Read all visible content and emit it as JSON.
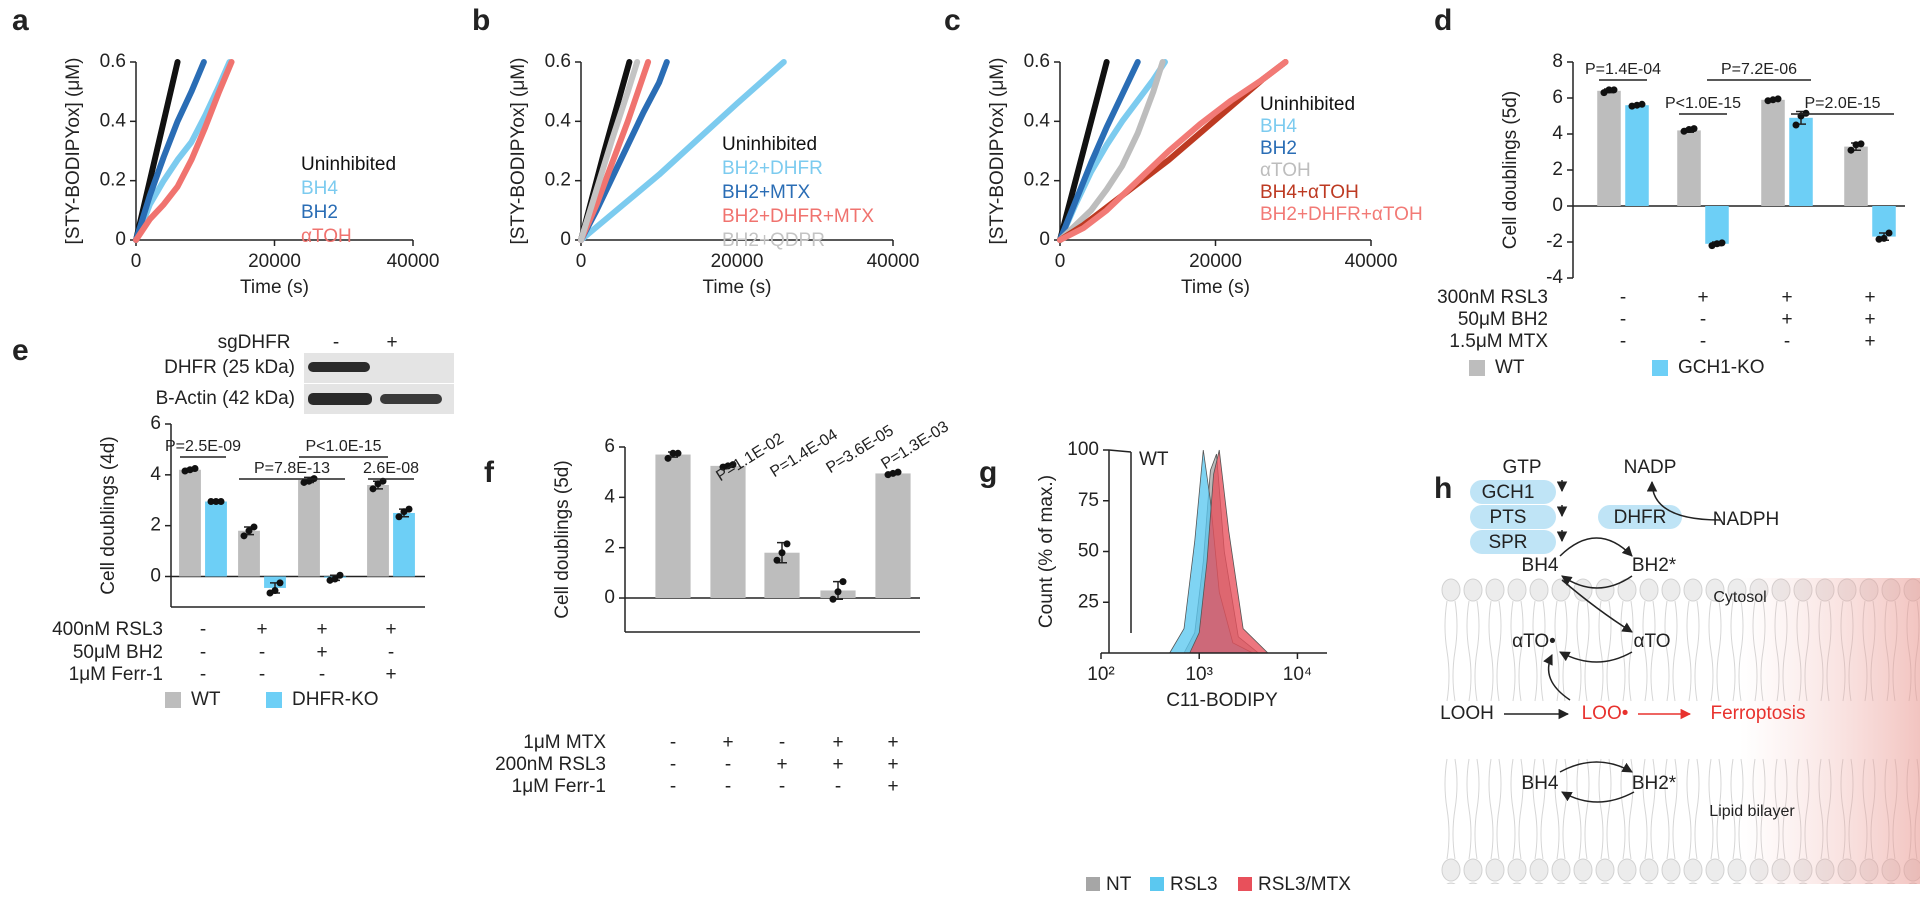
{
  "chart_data": [
    {
      "panel": "a",
      "type": "line",
      "ylabel": "[STY-BODIPYox] (μM)",
      "xlabel": "Time (s)",
      "xlim": [
        0,
        40000
      ],
      "ylim": [
        0,
        0.6
      ],
      "xticks": [
        0,
        20000,
        40000
      ],
      "yticks": [
        0,
        0.2,
        0.4,
        0.6
      ],
      "series": [
        {
          "name": "Uninhibited",
          "color": "#111111",
          "x": [
            0,
            1500,
            3000,
            4500,
            6000
          ],
          "values": [
            0,
            0.15,
            0.3,
            0.45,
            0.6
          ]
        },
        {
          "name": "BH4",
          "color": "#7ccbef",
          "x": [
            0,
            2000,
            4000,
            6000,
            8000,
            10000,
            12000,
            13500
          ],
          "values": [
            0,
            0.12,
            0.2,
            0.27,
            0.33,
            0.42,
            0.52,
            0.6
          ]
        },
        {
          "name": "BH2",
          "color": "#2a6db5",
          "x": [
            0,
            2000,
            4000,
            6000,
            8000,
            9800
          ],
          "values": [
            0,
            0.15,
            0.28,
            0.4,
            0.5,
            0.6
          ]
        },
        {
          "name": "αTOH",
          "color": "#f0736f",
          "x": [
            0,
            2000,
            4000,
            6000,
            8000,
            10000,
            12000,
            13800
          ],
          "values": [
            0,
            0.07,
            0.12,
            0.18,
            0.27,
            0.38,
            0.5,
            0.6
          ]
        }
      ]
    },
    {
      "panel": "b",
      "type": "line",
      "ylabel": "[STY-BODIPYox] (μM)",
      "xlabel": "Time (s)",
      "xlim": [
        0,
        40000
      ],
      "ylim": [
        0,
        0.6
      ],
      "xticks": [
        0,
        20000,
        40000
      ],
      "yticks": [
        0,
        0.2,
        0.4,
        0.6
      ],
      "series": [
        {
          "name": "Uninhibited",
          "color": "#111111",
          "x": [
            0,
            1500,
            3000,
            4600,
            6200
          ],
          "values": [
            0,
            0.15,
            0.3,
            0.45,
            0.6
          ]
        },
        {
          "name": "BH2+DHFR",
          "color": "#7ccbef",
          "x": [
            0,
            5000,
            10000,
            15000,
            20000,
            26000
          ],
          "values": [
            0,
            0.11,
            0.22,
            0.34,
            0.46,
            0.6
          ]
        },
        {
          "name": "BH2+MTX",
          "color": "#2a6db5",
          "x": [
            0,
            2000,
            4000,
            6000,
            8000,
            10000,
            11000
          ],
          "values": [
            0,
            0.1,
            0.21,
            0.32,
            0.43,
            0.53,
            0.6
          ]
        },
        {
          "name": "BH2+DHFR+MTX",
          "color": "#f0736f",
          "x": [
            0,
            2000,
            4000,
            6000,
            8600
          ],
          "values": [
            0,
            0.12,
            0.26,
            0.4,
            0.6
          ]
        },
        {
          "name": "BH2+QDPR",
          "color": "#c4c4c4",
          "x": [
            0,
            2000,
            4000,
            6000,
            7200
          ],
          "values": [
            0,
            0.17,
            0.34,
            0.5,
            0.6
          ]
        }
      ]
    },
    {
      "panel": "c",
      "type": "line",
      "ylabel": "[STY-BODIPYox] (μM)",
      "xlabel": "Time (s)",
      "xlim": [
        0,
        40000
      ],
      "ylim": [
        0,
        0.6
      ],
      "xticks": [
        0,
        20000,
        40000
      ],
      "yticks": [
        0,
        0.2,
        0.4,
        0.6
      ],
      "series": [
        {
          "name": "Uninhibited",
          "color": "#111111",
          "x": [
            0,
            1500,
            3000,
            4500,
            6000
          ],
          "values": [
            0,
            0.15,
            0.3,
            0.45,
            0.6
          ]
        },
        {
          "name": "BH4",
          "color": "#7ccbef",
          "x": [
            0,
            2000,
            4000,
            6000,
            8000,
            10000,
            12000,
            13500
          ],
          "values": [
            0,
            0.12,
            0.23,
            0.32,
            0.4,
            0.47,
            0.54,
            0.6
          ]
        },
        {
          "name": "BH2",
          "color": "#2a6db5",
          "x": [
            0,
            2000,
            4000,
            6000,
            8000,
            10000
          ],
          "values": [
            0,
            0.13,
            0.26,
            0.38,
            0.49,
            0.6
          ]
        },
        {
          "name": "αTOH",
          "color": "#bdbdbd",
          "x": [
            0,
            2000,
            4000,
            6000,
            8000,
            10000,
            12000,
            13200
          ],
          "values": [
            0,
            0.05,
            0.1,
            0.17,
            0.25,
            0.36,
            0.5,
            0.6
          ]
        },
        {
          "name": "BH4+αTOH",
          "color": "#bd3a22",
          "x": [
            0,
            3000,
            6000,
            10000,
            14000,
            18000,
            22000,
            26000,
            29000
          ],
          "values": [
            0,
            0.05,
            0.11,
            0.19,
            0.27,
            0.36,
            0.45,
            0.54,
            0.6
          ]
        },
        {
          "name": "BH2+DHFR+αTOH",
          "color": "#f27a76",
          "x": [
            0,
            3000,
            6000,
            10000,
            14000,
            18000,
            22000,
            26000,
            29000
          ],
          "values": [
            0,
            0.04,
            0.1,
            0.2,
            0.3,
            0.39,
            0.47,
            0.54,
            0.6
          ]
        }
      ]
    },
    {
      "panel": "d",
      "type": "bar",
      "ylabel": "Cell doublings (5d)",
      "ylim": [
        -4,
        8
      ],
      "yticks": [
        -4,
        -2,
        0,
        2,
        4,
        6,
        8
      ],
      "series": [
        {
          "name": "WT",
          "color": "#bdbdbd",
          "values": [
            6.4,
            4.2,
            5.9,
            3.3
          ],
          "errors": [
            0.1,
            0.1,
            0.05,
            0.2
          ],
          "points": [
            [
              6.3,
              6.45,
              6.45
            ],
            [
              4.15,
              4.25,
              4.3
            ],
            [
              5.85,
              5.9,
              5.95
            ],
            [
              3.1,
              3.4,
              3.45
            ]
          ]
        },
        {
          "name": "GCH1-KO",
          "color": "#6dcff6",
          "values": [
            5.6,
            -2.1,
            4.9,
            -1.7
          ],
          "errors": [
            0.05,
            0.1,
            0.35,
            0.2
          ],
          "points": [
            [
              5.55,
              5.6,
              5.65
            ],
            [
              -2.2,
              -2.1,
              -2.05
            ],
            [
              4.5,
              5.0,
              5.15
            ],
            [
              -1.85,
              -1.8,
              -1.5
            ]
          ]
        }
      ],
      "annotations": [
        "P=1.4E-04",
        "P<1.0E-15",
        "P=7.2E-06",
        "P=2.0E-15"
      ],
      "conditions": [
        {
          "name": "300nM RSL3",
          "values": [
            "-",
            "+",
            "+",
            "+"
          ]
        },
        {
          "name": "50μM BH2",
          "values": [
            "-",
            "-",
            "+",
            "+"
          ]
        },
        {
          "name": "1.5μM MTX",
          "values": [
            "-",
            "-",
            "-",
            "+"
          ]
        }
      ]
    },
    {
      "panel": "e",
      "type": "bar",
      "ylabel": "Cell doublings (4d)",
      "ylim": [
        -1.2,
        6
      ],
      "yticks": [
        0,
        2,
        4,
        6
      ],
      "blot": {
        "title": "sgDHFR",
        "lanes": [
          "-",
          "+"
        ],
        "rows": [
          "DHFR (25 kDa)",
          "B-Actin (42 kDa)"
        ]
      },
      "series": [
        {
          "name": "WT",
          "color": "#bdbdbd",
          "values": [
            4.2,
            1.8,
            3.8,
            3.6
          ],
          "errors": [
            0.05,
            0.15,
            0.1,
            0.15
          ],
          "points": [
            [
              4.15,
              4.2,
              4.25
            ],
            [
              1.6,
              1.8,
              1.95
            ],
            [
              3.7,
              3.75,
              3.85
            ],
            [
              3.45,
              3.65,
              3.75
            ]
          ]
        },
        {
          "name": "DHFR-KO",
          "color": "#6dcff6",
          "values": [
            2.95,
            -0.45,
            -0.05,
            2.5
          ],
          "errors": [
            0.02,
            0.2,
            0.1,
            0.15
          ],
          "points": [
            [
              2.95,
              2.95,
              2.95
            ],
            [
              -0.65,
              -0.55,
              -0.25
            ],
            [
              -0.15,
              -0.1,
              0.05
            ],
            [
              2.35,
              2.55,
              2.65
            ]
          ]
        }
      ],
      "annotations": [
        "P=2.5E-09",
        "P=7.8E-13",
        "P<1.0E-15",
        "2.6E-08"
      ],
      "conditions": [
        {
          "name": "400nM RSL3",
          "values": [
            "-",
            "+",
            "+",
            "+"
          ]
        },
        {
          "name": "50μM BH2",
          "values": [
            "-",
            "-",
            "+",
            "-"
          ]
        },
        {
          "name": "1μM Ferr-1",
          "values": [
            "-",
            "-",
            "-",
            "+"
          ]
        }
      ]
    },
    {
      "panel": "f",
      "type": "bar",
      "ylabel": "Cell doublings (5d)",
      "ylim": [
        -1.35,
        6
      ],
      "yticks": [
        0,
        2,
        4,
        6
      ],
      "series": [
        {
          "color": "#bdbdbd",
          "values": [
            5.7,
            5.25,
            1.8,
            0.3,
            4.95
          ],
          "errors": [
            0.1,
            0.05,
            0.4,
            0.35,
            0.05
          ],
          "points": [
            [
              5.55,
              5.75,
              5.75
            ],
            [
              5.2,
              5.25,
              5.3
            ],
            [
              1.5,
              1.8,
              2.15
            ],
            [
              -0.05,
              0.25,
              0.65
            ],
            [
              4.9,
              4.95,
              5.0
            ]
          ]
        }
      ],
      "annotations": [
        "P=1.1E-02",
        "P=1.4E-04",
        "P=3.6E-05",
        "P=1.3E-03"
      ],
      "conditions": [
        {
          "name": "1μM MTX",
          "values": [
            "-",
            "+",
            "-",
            "+",
            "+"
          ]
        },
        {
          "name": "200nM RSL3",
          "values": [
            "-",
            "-",
            "+",
            "+",
            "+"
          ]
        },
        {
          "name": "1μM Ferr-1",
          "values": [
            "-",
            "-",
            "-",
            "-",
            "+"
          ]
        }
      ]
    },
    {
      "panel": "g",
      "type": "density",
      "annotation": "WT",
      "ylabel": "Count (% of max.)",
      "xlabel": "C11-BODIPY",
      "xscale": "log",
      "xlim": [
        100,
        20000
      ],
      "ylim": [
        0,
        100
      ],
      "xticks": [
        {
          "value": 100,
          "label": "10²"
        },
        {
          "value": 1000,
          "label": "10³"
        },
        {
          "value": 10000,
          "label": "10⁴"
        }
      ],
      "yticks": [
        25,
        50,
        75,
        100
      ],
      "series": [
        {
          "name": "NT",
          "color": "#a6a6a6",
          "x": [
            700,
            900,
            1100,
            1300,
            1500,
            1800,
            2500,
            4000
          ],
          "values": [
            0,
            10,
            45,
            90,
            98,
            50,
            8,
            0
          ]
        },
        {
          "name": "RSL3",
          "color": "#5bc8f0",
          "x": [
            500,
            700,
            900,
            1100,
            1300,
            1600,
            2200,
            3500
          ],
          "values": [
            0,
            12,
            55,
            100,
            75,
            30,
            5,
            0
          ]
        },
        {
          "name": "RSL3/MTX",
          "color": "#e8505b",
          "x": [
            800,
            1000,
            1200,
            1400,
            1600,
            2000,
            2800,
            5000
          ],
          "values": [
            0,
            10,
            45,
            88,
            100,
            60,
            12,
            0
          ]
        }
      ]
    }
  ],
  "diagram": {
    "panel": "h",
    "nodes": [
      "GTP",
      "NADP",
      "GCH1",
      "PTS",
      "SPR",
      "DHFR",
      "NADPH",
      "BH4",
      "BH2*",
      "Cytosol",
      "αTO•",
      "αTO",
      "LOOH",
      "LOO•",
      "Ferroptosis",
      "BH4",
      "BH2*",
      "Lipid bilayer"
    ]
  }
}
